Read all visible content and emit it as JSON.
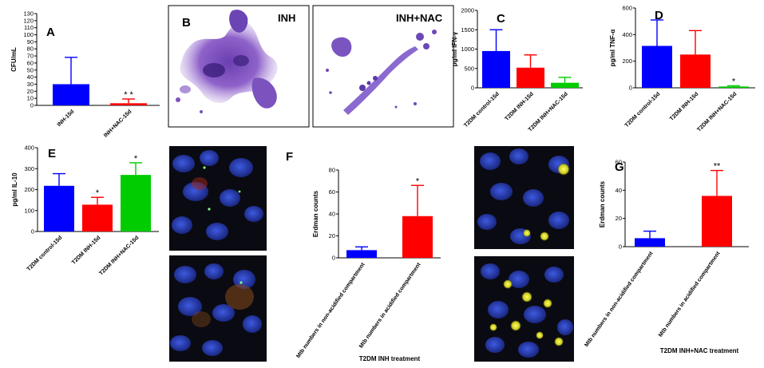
{
  "panels": {
    "B": {
      "label": "B",
      "left_caption": "INH",
      "right_caption": "INH+NAC"
    },
    "F": {
      "label": "F"
    }
  },
  "chart_data": [
    {
      "id": "A",
      "type": "bar",
      "label": "A",
      "categories": [
        "INH-15d",
        "INH+NAC-15d"
      ],
      "values": [
        30,
        3
      ],
      "errors": [
        38,
        6
      ],
      "colors": [
        "#0000ff",
        "#ff0000"
      ],
      "significance": [
        "",
        "* *"
      ],
      "ylabel": "CFU/mL",
      "ylim": [
        0,
        130
      ],
      "yticks": [
        0,
        10,
        20,
        30,
        40,
        50,
        60,
        70,
        80,
        90,
        100,
        110,
        120,
        130
      ],
      "xlabel": ""
    },
    {
      "id": "C",
      "type": "bar",
      "label": "C",
      "categories": [
        "T2DM control-15d",
        "T2DM INH-15d",
        "T2DM INH+NAC-15d"
      ],
      "values": [
        950,
        520,
        130
      ],
      "errors": [
        550,
        330,
        140
      ],
      "colors": [
        "#0000ff",
        "#ff0000",
        "#00cc00"
      ],
      "significance": [
        "",
        "",
        ""
      ],
      "ylabel": "pg/ml IFN-γ",
      "ylim": [
        0,
        2000
      ],
      "yticks": [
        0,
        500,
        1000,
        1500,
        2000
      ],
      "xlabel": ""
    },
    {
      "id": "D",
      "type": "bar",
      "label": "D",
      "categories": [
        "T2DM control-15d",
        "T2DM INH-15d",
        "T2DM INH+NAC-15d"
      ],
      "values": [
        315,
        250,
        10
      ],
      "errors": [
        195,
        180,
        5
      ],
      "colors": [
        "#0000ff",
        "#ff0000",
        "#00cc00"
      ],
      "significance": [
        "",
        "",
        "*"
      ],
      "ylabel": "pg/ml TNF-α",
      "ylim": [
        0,
        600
      ],
      "yticks": [
        0,
        200,
        400,
        600
      ],
      "xlabel": ""
    },
    {
      "id": "E",
      "type": "bar",
      "label": "E",
      "categories": [
        "T2DM control-15d",
        "T2DM INH-15d",
        "T2DM INH+NAC-15d"
      ],
      "values": [
        218,
        128,
        270
      ],
      "errors": [
        58,
        35,
        58
      ],
      "colors": [
        "#0000ff",
        "#ff0000",
        "#00cc00"
      ],
      "significance": [
        "",
        "*",
        "*"
      ],
      "ylabel": "pg/ml IL-10",
      "ylim": [
        0,
        400
      ],
      "yticks": [
        0,
        100,
        200,
        300,
        400
      ],
      "xlabel": ""
    },
    {
      "id": "F",
      "type": "bar",
      "label": "",
      "categories": [
        "Mtb numbers in non-acidified compartment",
        "Mtb numbers in acidified compartment"
      ],
      "values": [
        7,
        38
      ],
      "errors": [
        3,
        28
      ],
      "colors": [
        "#0000ff",
        "#ff0000"
      ],
      "significance": [
        "",
        "*"
      ],
      "ylabel": "Erdman counts",
      "ylim": [
        0,
        80
      ],
      "yticks": [
        0,
        20,
        40,
        60,
        80
      ],
      "xlabel": "T2DM INH treatment"
    },
    {
      "id": "G",
      "type": "bar",
      "label": "G",
      "categories": [
        "Mtb numbers in non-acidified compartment",
        "Mtb numbers in acidified compartment"
      ],
      "values": [
        6,
        36
      ],
      "errors": [
        5,
        18
      ],
      "colors": [
        "#0000ff",
        "#ff0000"
      ],
      "significance": [
        "",
        "**"
      ],
      "ylabel": "Erdman counts",
      "ylim": [
        0,
        60
      ],
      "yticks": [
        0,
        20,
        40,
        60
      ],
      "xlabel": "T2DM INH+NAC treatment"
    }
  ]
}
